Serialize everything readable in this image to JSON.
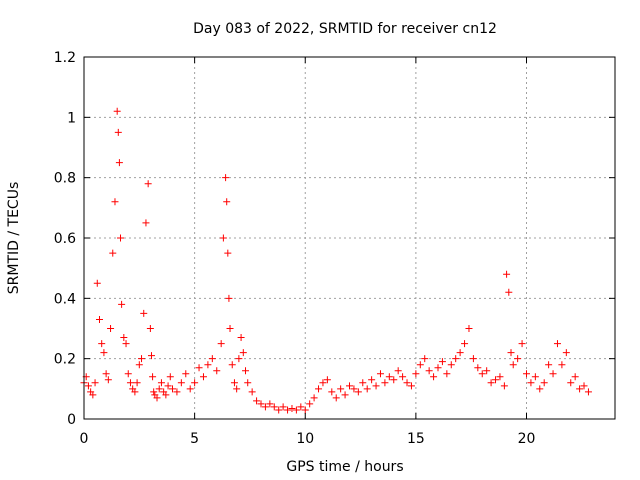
{
  "chart_data": {
    "type": "scatter",
    "title": "Day 083 of 2022, SRMTID for receiver cn12",
    "xlabel": "GPS time / hours",
    "ylabel": "SRMTID / TECUs",
    "xlim": [
      0,
      24
    ],
    "ylim": [
      0,
      1.2
    ],
    "xticks": [
      0,
      5,
      10,
      15,
      20
    ],
    "xtick_labels": [
      "0",
      "5",
      "10",
      "15",
      "20"
    ],
    "yticks": [
      0,
      0.2,
      0.4,
      0.6,
      0.8,
      1.0,
      1.2
    ],
    "ytick_labels": [
      "0",
      "0.2",
      "0.4",
      "0.6",
      "0.8",
      "1",
      "1.2"
    ],
    "grid": true,
    "marker": "+",
    "colors": {
      "series": "#ff0000",
      "grid": "#a0a0a0",
      "axis": "#000000"
    },
    "series": [
      {
        "name": "SRMTID",
        "x": [
          0.0,
          0.1,
          0.2,
          0.3,
          0.4,
          0.5,
          0.6,
          0.7,
          0.8,
          0.9,
          1.0,
          1.1,
          1.2,
          1.3,
          1.4,
          1.5,
          1.55,
          1.6,
          1.65,
          1.7,
          1.8,
          1.9,
          2.0,
          2.1,
          2.2,
          2.3,
          2.4,
          2.5,
          2.6,
          2.7,
          2.8,
          2.9,
          3.0,
          3.05,
          3.1,
          3.15,
          3.2,
          3.3,
          3.4,
          3.5,
          3.6,
          3.7,
          3.8,
          3.9,
          4.0,
          4.2,
          4.4,
          4.6,
          4.8,
          5.0,
          5.2,
          5.4,
          5.6,
          5.8,
          6.0,
          6.2,
          6.3,
          6.4,
          6.45,
          6.5,
          6.55,
          6.6,
          6.7,
          6.8,
          6.9,
          7.0,
          7.1,
          7.2,
          7.3,
          7.4,
          7.6,
          7.8,
          8.0,
          8.2,
          8.4,
          8.6,
          8.8,
          9.0,
          9.2,
          9.4,
          9.6,
          9.8,
          10.0,
          10.2,
          10.4,
          10.6,
          10.8,
          11.0,
          11.2,
          11.4,
          11.6,
          11.8,
          12.0,
          12.2,
          12.4,
          12.6,
          12.8,
          13.0,
          13.2,
          13.4,
          13.6,
          13.8,
          14.0,
          14.2,
          14.4,
          14.6,
          14.8,
          15.0,
          15.2,
          15.4,
          15.6,
          15.8,
          16.0,
          16.2,
          16.4,
          16.6,
          16.8,
          17.0,
          17.2,
          17.4,
          17.6,
          17.8,
          18.0,
          18.2,
          18.4,
          18.6,
          18.8,
          19.0,
          19.1,
          19.2,
          19.3,
          19.4,
          19.6,
          19.8,
          20.0,
          20.2,
          20.4,
          20.6,
          20.8,
          21.0,
          21.2,
          21.4,
          21.6,
          21.8,
          22.0,
          22.2,
          22.4,
          22.6,
          22.8
        ],
        "y": [
          0.12,
          0.14,
          0.11,
          0.09,
          0.08,
          0.12,
          0.45,
          0.33,
          0.25,
          0.22,
          0.15,
          0.13,
          0.3,
          0.55,
          0.72,
          1.02,
          0.95,
          0.85,
          0.6,
          0.38,
          0.27,
          0.25,
          0.15,
          0.12,
          0.1,
          0.09,
          0.12,
          0.18,
          0.2,
          0.35,
          0.65,
          0.78,
          0.3,
          0.21,
          0.14,
          0.09,
          0.08,
          0.07,
          0.1,
          0.12,
          0.09,
          0.08,
          0.11,
          0.14,
          0.1,
          0.09,
          0.12,
          0.15,
          0.1,
          0.12,
          0.17,
          0.14,
          0.18,
          0.2,
          0.16,
          0.25,
          0.6,
          0.8,
          0.72,
          0.55,
          0.4,
          0.3,
          0.18,
          0.12,
          0.1,
          0.2,
          0.27,
          0.22,
          0.16,
          0.12,
          0.09,
          0.06,
          0.05,
          0.04,
          0.05,
          0.04,
          0.03,
          0.04,
          0.03,
          0.035,
          0.03,
          0.04,
          0.03,
          0.05,
          0.07,
          0.1,
          0.12,
          0.13,
          0.09,
          0.07,
          0.1,
          0.08,
          0.11,
          0.1,
          0.09,
          0.12,
          0.1,
          0.13,
          0.11,
          0.15,
          0.12,
          0.14,
          0.13,
          0.16,
          0.14,
          0.12,
          0.11,
          0.15,
          0.18,
          0.2,
          0.16,
          0.14,
          0.17,
          0.19,
          0.15,
          0.18,
          0.2,
          0.22,
          0.25,
          0.3,
          0.2,
          0.17,
          0.15,
          0.16,
          0.12,
          0.13,
          0.14,
          0.11,
          0.48,
          0.42,
          0.22,
          0.18,
          0.2,
          0.25,
          0.15,
          0.12,
          0.14,
          0.1,
          0.12,
          0.18,
          0.15,
          0.25,
          0.18,
          0.22,
          0.12,
          0.14,
          0.1,
          0.11,
          0.09
        ]
      }
    ]
  }
}
